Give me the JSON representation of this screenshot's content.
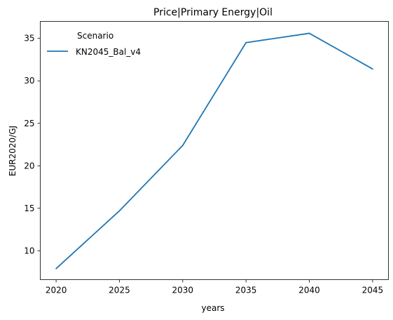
{
  "chart_data": {
    "type": "line",
    "title": "Price|Primary Energy|Oil",
    "xlabel": "years",
    "ylabel": "EUR2020/GJ",
    "x": [
      2020,
      2025,
      2030,
      2035,
      2040,
      2045
    ],
    "xticks": [
      2020,
      2025,
      2030,
      2035,
      2040,
      2045
    ],
    "yticks": [
      10,
      15,
      20,
      25,
      30,
      35
    ],
    "xlim": [
      2018.75,
      2046.25
    ],
    "ylim": [
      6.6,
      37.0
    ],
    "grid": false,
    "legend": {
      "title": "Scenario",
      "placement": "upper-left"
    },
    "series": [
      {
        "name": "KN2045_Bal_v4",
        "color": "#1f77b4",
        "values": [
          7.9,
          14.7,
          22.4,
          34.5,
          35.6,
          31.4
        ]
      }
    ]
  }
}
